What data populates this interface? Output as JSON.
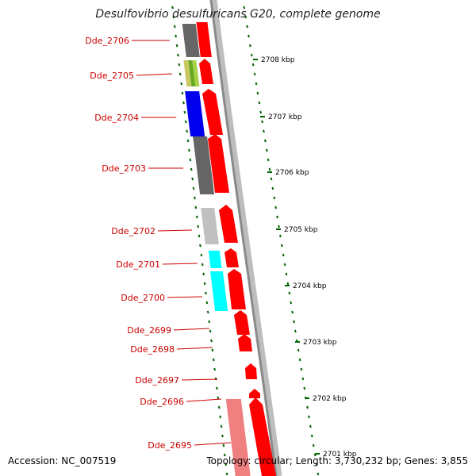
{
  "title": "Desulfovibrio desulfuricans G20, complete genome",
  "footer": {
    "accession": "Accession: NC_007519",
    "summary": "Topology: circular; Length: 3,730,232 bp; Genes: 3,855"
  },
  "colors": {
    "forward_strand": "#ff0000",
    "forward_strand_pale": "#f08080",
    "backbone": "#8a8a8a",
    "tick": "#006400",
    "label": "#cc0000",
    "cog_unknown": "#666666",
    "cog_green": "#7fbf3f",
    "cog_blue": "#0000ee",
    "cog_light_gray": "#c0c0c0",
    "cog_cyan": "#00ffff"
  },
  "genes": [
    {
      "label": "Dde_2706"
    },
    {
      "label": "Dde_2705"
    },
    {
      "label": "Dde_2704"
    },
    {
      "label": "Dde_2703"
    },
    {
      "label": "Dde_2702"
    },
    {
      "label": "Dde_2701"
    },
    {
      "label": "Dde_2700"
    },
    {
      "label": "Dde_2699"
    },
    {
      "label": "Dde_2698"
    },
    {
      "label": "Dde_2697"
    },
    {
      "label": "Dde_2696"
    },
    {
      "label": "Dde_2695"
    }
  ],
  "scale_labels": [
    "2708 kbp",
    "2707 kbp",
    "2706 kbp",
    "2705 kbp",
    "2704 kbp",
    "2703 kbp",
    "2702 kbp",
    "2701 kbp"
  ]
}
